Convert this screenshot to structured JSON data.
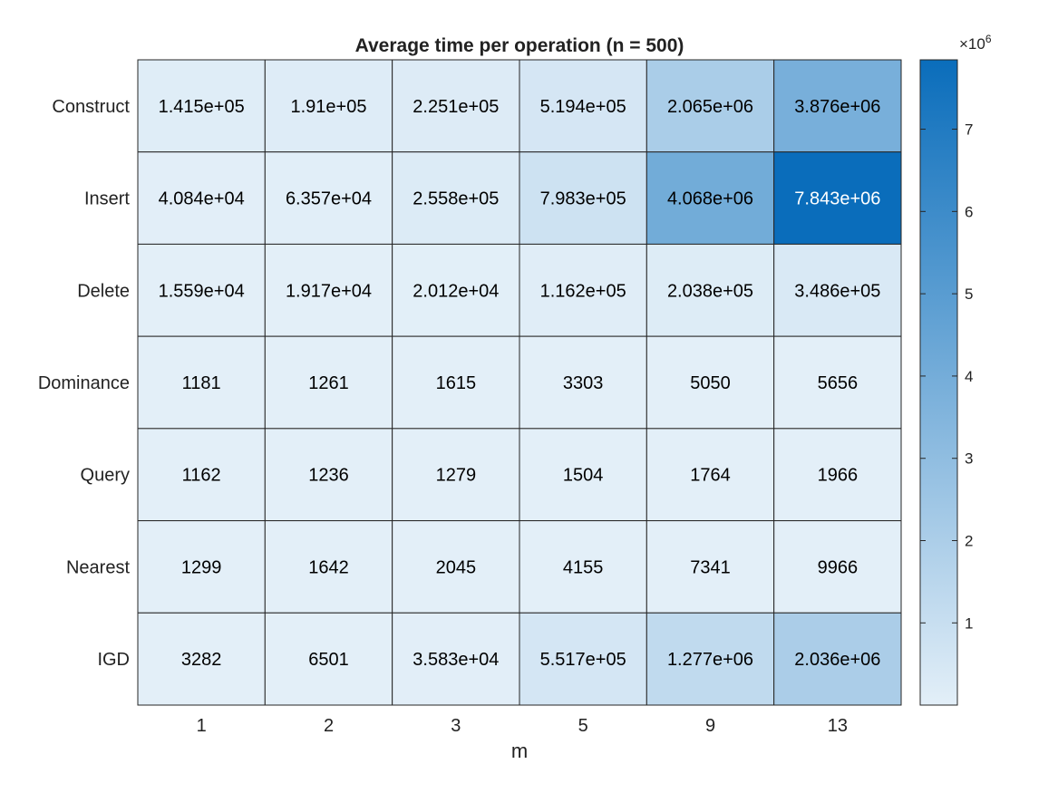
{
  "chart_data": {
    "type": "heatmap",
    "title": "Average time per operation (n = 500)",
    "xlabel": "m",
    "ylabel": "",
    "x_categories": [
      "1",
      "2",
      "3",
      "5",
      "9",
      "13"
    ],
    "y_categories": [
      "Construct",
      "Insert",
      "Delete",
      "Dominance",
      "Query",
      "Nearest",
      "IGD"
    ],
    "values": [
      [
        141500,
        191000,
        225100,
        519400,
        2065000,
        3876000
      ],
      [
        40840,
        63570,
        255800,
        798300,
        4068000,
        7843000
      ],
      [
        15590,
        19170,
        20120,
        116200,
        203800,
        348600
      ],
      [
        1181,
        1261,
        1615,
        3303,
        5050,
        5656
      ],
      [
        1162,
        1236,
        1279,
        1504,
        1764,
        1966
      ],
      [
        1299,
        1642,
        2045,
        4155,
        7341,
        9966
      ],
      [
        3282,
        6501,
        35830,
        551700,
        1277000,
        2036000
      ]
    ],
    "cell_labels": [
      [
        "1.415e+05",
        "1.91e+05",
        "2.251e+05",
        "5.194e+05",
        "2.065e+06",
        "3.876e+06"
      ],
      [
        "4.084e+04",
        "6.357e+04",
        "2.558e+05",
        "7.983e+05",
        "4.068e+06",
        "7.843e+06"
      ],
      [
        "1.559e+04",
        "1.917e+04",
        "2.012e+04",
        "1.162e+05",
        "2.038e+05",
        "3.486e+05"
      ],
      [
        "1181",
        "1261",
        "1615",
        "3303",
        "5050",
        "5656"
      ],
      [
        "1162",
        "1236",
        "1279",
        "1504",
        "1764",
        "1966"
      ],
      [
        "1299",
        "1642",
        "2045",
        "4155",
        "7341",
        "9966"
      ],
      [
        "3282",
        "6501",
        "3.583e+04",
        "5.517e+05",
        "1.277e+06",
        "2.036e+06"
      ]
    ],
    "colorbar": {
      "range": [
        1162,
        7843000
      ],
      "ticks": [
        1,
        2,
        3,
        4,
        5,
        6,
        7
      ],
      "tick_labels": [
        "1",
        "2",
        "3",
        "4",
        "5",
        "6",
        "7"
      ],
      "multiplier_base": "×10",
      "multiplier_exp": "6",
      "multiplier": 1000000
    },
    "colors": {
      "low": "#e3eff8",
      "high": "#0a6dbb",
      "grid": "#262626",
      "text_dark": "#000000",
      "text_light": "#ffffff"
    }
  }
}
